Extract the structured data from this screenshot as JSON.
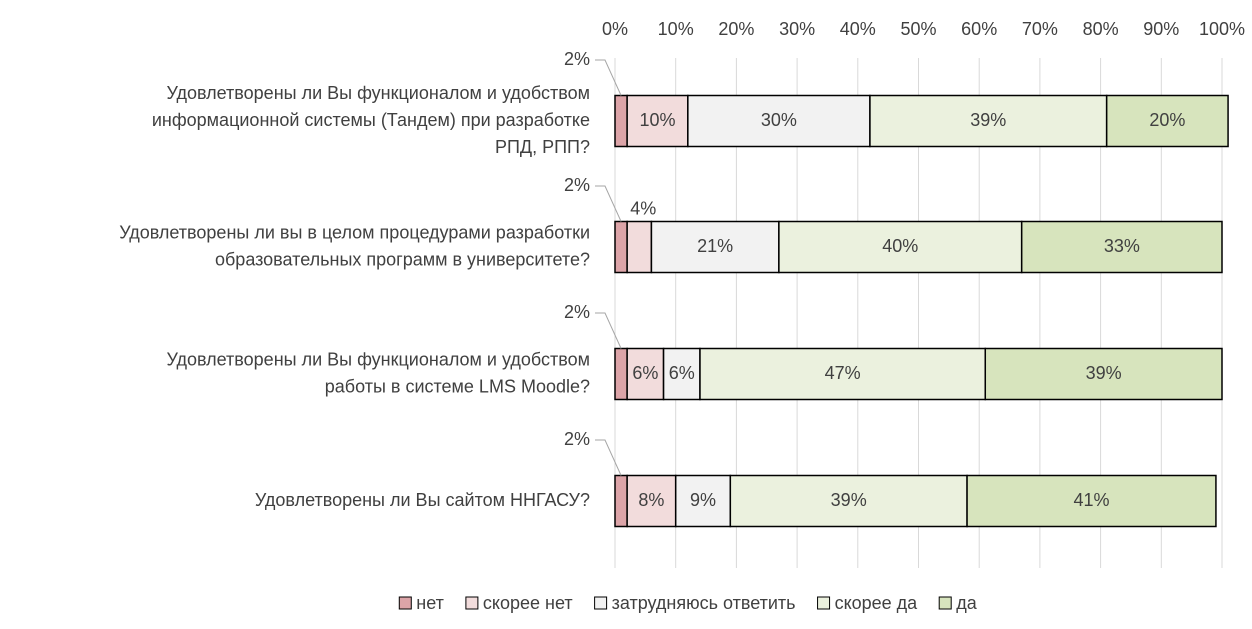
{
  "chart_data": {
    "type": "stacked_bar_horizontal",
    "categories": [
      "Удовлетворены ли Вы функционалом и удобством\nинформационной системы (Тандем) при разработке\nРПД, РПП?",
      "Удовлетворены ли вы в целом процедурами разработки\nобразовательных программ в университете?",
      "Удовлетворены ли Вы функционалом и удобством\nработы в системе LMS Moodle?",
      "Удовлетворены ли Вы сайтом ННГАСУ?"
    ],
    "series": [
      {
        "name": "нет",
        "color": "#dca4a8",
        "values": [
          2,
          2,
          2,
          2
        ],
        "value_labels": [
          "2%",
          "2%",
          "2%",
          "2%"
        ]
      },
      {
        "name": "скорее нет",
        "color": "#f2dcdc",
        "values": [
          10,
          4,
          6,
          8
        ],
        "value_labels": [
          "10%",
          "4%",
          "6%",
          "8%"
        ]
      },
      {
        "name": "затрудняюсь ответить",
        "color": "#f2f2f2",
        "values": [
          30,
          21,
          6,
          9
        ],
        "value_labels": [
          "30%",
          "21%",
          "6%",
          "9%"
        ]
      },
      {
        "name": "скорее да",
        "color": "#ebf1de",
        "values": [
          39,
          40,
          47,
          39
        ],
        "value_labels": [
          "39%",
          "40%",
          "47%",
          "39%"
        ]
      },
      {
        "name": "да",
        "color": "#d7e4bd",
        "values": [
          20,
          33,
          39,
          41
        ],
        "value_labels": [
          "20%",
          "33%",
          "39%",
          "41%"
        ]
      }
    ],
    "xlim": [
      0,
      100
    ],
    "xticks": [
      {
        "value": 0,
        "label": "0%"
      },
      {
        "value": 10,
        "label": "10%"
      },
      {
        "value": 20,
        "label": "20%"
      },
      {
        "value": 30,
        "label": "30%"
      },
      {
        "value": 40,
        "label": "40%"
      },
      {
        "value": 50,
        "label": "50%"
      },
      {
        "value": 60,
        "label": "60%"
      },
      {
        "value": 70,
        "label": "70%"
      },
      {
        "value": 80,
        "label": "80%"
      },
      {
        "value": 90,
        "label": "90%"
      },
      {
        "value": 100,
        "label": "100%"
      }
    ],
    "grid": true,
    "legend": "bottom"
  }
}
